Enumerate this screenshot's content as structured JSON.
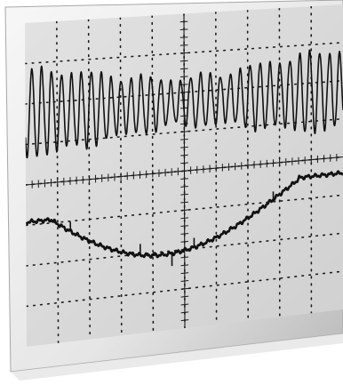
{
  "scene": {
    "subject": "oscilloscope-screen-printout",
    "colors": {
      "background": "#ffffff",
      "bezel_light": "#f4f4f4",
      "bezel_dark": "#bfbfbf",
      "screen": "#dcdcdc",
      "grid": "#1a1a1a",
      "trace": "#111111"
    },
    "grid": {
      "columns": 10,
      "rows": 8,
      "minor_ticks_per_division": 5
    },
    "traces": [
      {
        "name": "upper-trace",
        "waveform": "amplitude-modulated-oscillation",
        "cycles_visible": 32
      },
      {
        "name": "lower-trace",
        "waveform": "smooth-dip-envelope-with-spikes"
      }
    ]
  }
}
